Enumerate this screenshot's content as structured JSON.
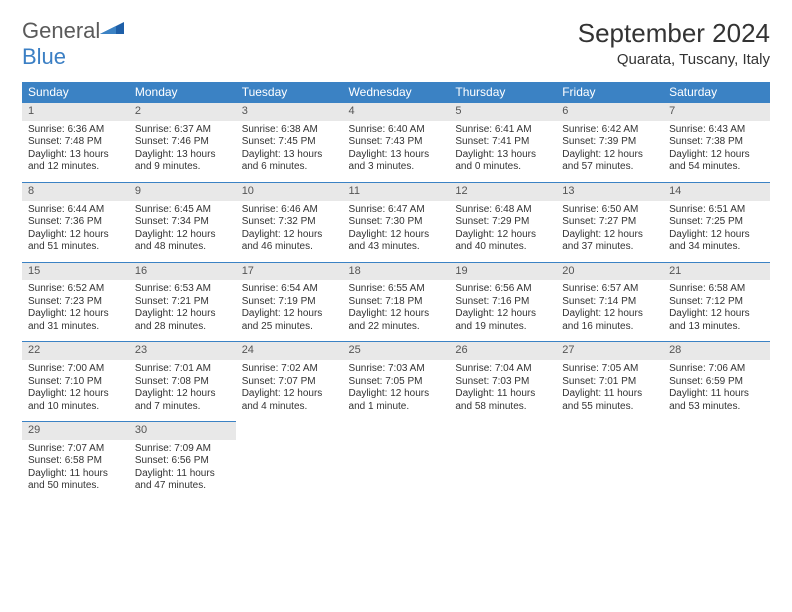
{
  "logo": {
    "general": "General",
    "blue": "Blue"
  },
  "title": "September 2024",
  "location": "Quarata, Tuscany, Italy",
  "header_color": "#3b82c4",
  "daynum_bg": "#e8e8e8",
  "columns": [
    "Sunday",
    "Monday",
    "Tuesday",
    "Wednesday",
    "Thursday",
    "Friday",
    "Saturday"
  ],
  "days": [
    {
      "n": "1",
      "sr": "6:36 AM",
      "ss": "7:48 PM",
      "dl": "13 hours and 12 minutes."
    },
    {
      "n": "2",
      "sr": "6:37 AM",
      "ss": "7:46 PM",
      "dl": "13 hours and 9 minutes."
    },
    {
      "n": "3",
      "sr": "6:38 AM",
      "ss": "7:45 PM",
      "dl": "13 hours and 6 minutes."
    },
    {
      "n": "4",
      "sr": "6:40 AM",
      "ss": "7:43 PM",
      "dl": "13 hours and 3 minutes."
    },
    {
      "n": "5",
      "sr": "6:41 AM",
      "ss": "7:41 PM",
      "dl": "13 hours and 0 minutes."
    },
    {
      "n": "6",
      "sr": "6:42 AM",
      "ss": "7:39 PM",
      "dl": "12 hours and 57 minutes."
    },
    {
      "n": "7",
      "sr": "6:43 AM",
      "ss": "7:38 PM",
      "dl": "12 hours and 54 minutes."
    },
    {
      "n": "8",
      "sr": "6:44 AM",
      "ss": "7:36 PM",
      "dl": "12 hours and 51 minutes."
    },
    {
      "n": "9",
      "sr": "6:45 AM",
      "ss": "7:34 PM",
      "dl": "12 hours and 48 minutes."
    },
    {
      "n": "10",
      "sr": "6:46 AM",
      "ss": "7:32 PM",
      "dl": "12 hours and 46 minutes."
    },
    {
      "n": "11",
      "sr": "6:47 AM",
      "ss": "7:30 PM",
      "dl": "12 hours and 43 minutes."
    },
    {
      "n": "12",
      "sr": "6:48 AM",
      "ss": "7:29 PM",
      "dl": "12 hours and 40 minutes."
    },
    {
      "n": "13",
      "sr": "6:50 AM",
      "ss": "7:27 PM",
      "dl": "12 hours and 37 minutes."
    },
    {
      "n": "14",
      "sr": "6:51 AM",
      "ss": "7:25 PM",
      "dl": "12 hours and 34 minutes."
    },
    {
      "n": "15",
      "sr": "6:52 AM",
      "ss": "7:23 PM",
      "dl": "12 hours and 31 minutes."
    },
    {
      "n": "16",
      "sr": "6:53 AM",
      "ss": "7:21 PM",
      "dl": "12 hours and 28 minutes."
    },
    {
      "n": "17",
      "sr": "6:54 AM",
      "ss": "7:19 PM",
      "dl": "12 hours and 25 minutes."
    },
    {
      "n": "18",
      "sr": "6:55 AM",
      "ss": "7:18 PM",
      "dl": "12 hours and 22 minutes."
    },
    {
      "n": "19",
      "sr": "6:56 AM",
      "ss": "7:16 PM",
      "dl": "12 hours and 19 minutes."
    },
    {
      "n": "20",
      "sr": "6:57 AM",
      "ss": "7:14 PM",
      "dl": "12 hours and 16 minutes."
    },
    {
      "n": "21",
      "sr": "6:58 AM",
      "ss": "7:12 PM",
      "dl": "12 hours and 13 minutes."
    },
    {
      "n": "22",
      "sr": "7:00 AM",
      "ss": "7:10 PM",
      "dl": "12 hours and 10 minutes."
    },
    {
      "n": "23",
      "sr": "7:01 AM",
      "ss": "7:08 PM",
      "dl": "12 hours and 7 minutes."
    },
    {
      "n": "24",
      "sr": "7:02 AM",
      "ss": "7:07 PM",
      "dl": "12 hours and 4 minutes."
    },
    {
      "n": "25",
      "sr": "7:03 AM",
      "ss": "7:05 PM",
      "dl": "12 hours and 1 minute."
    },
    {
      "n": "26",
      "sr": "7:04 AM",
      "ss": "7:03 PM",
      "dl": "11 hours and 58 minutes."
    },
    {
      "n": "27",
      "sr": "7:05 AM",
      "ss": "7:01 PM",
      "dl": "11 hours and 55 minutes."
    },
    {
      "n": "28",
      "sr": "7:06 AM",
      "ss": "6:59 PM",
      "dl": "11 hours and 53 minutes."
    },
    {
      "n": "29",
      "sr": "7:07 AM",
      "ss": "6:58 PM",
      "dl": "11 hours and 50 minutes."
    },
    {
      "n": "30",
      "sr": "7:09 AM",
      "ss": "6:56 PM",
      "dl": "11 hours and 47 minutes."
    }
  ],
  "labels": {
    "sunrise": "Sunrise:",
    "sunset": "Sunset:",
    "daylight": "Daylight:"
  },
  "start_offset": 0,
  "total_cells": 35
}
